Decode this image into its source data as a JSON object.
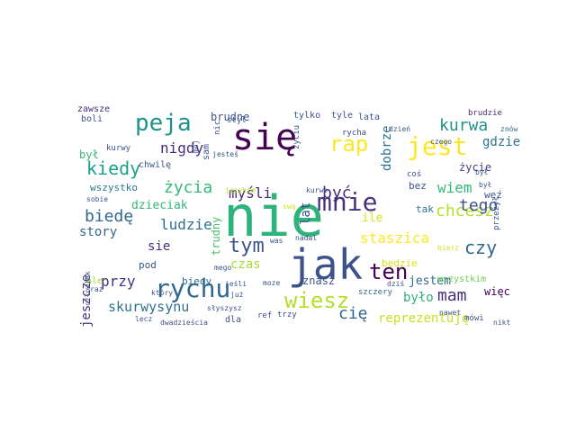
{
  "words": [
    {
      "text": "nie",
      "color": "#2eb37c"
    },
    {
      "text": "się",
      "color": "#440154"
    },
    {
      "text": "jak",
      "color": "#3b528b"
    },
    {
      "text": "peja",
      "color": "#21918c"
    },
    {
      "text": "rap",
      "color": "#fde725"
    },
    {
      "text": "jest",
      "color": "#fde725"
    },
    {
      "text": "mnie",
      "color": "#46327e"
    },
    {
      "text": "rychu",
      "color": "#31688e"
    },
    {
      "text": "wiesz",
      "color": "#b5de2b"
    },
    {
      "text": "ten",
      "color": "#440154"
    },
    {
      "text": "tym",
      "color": "#3b528b"
    },
    {
      "text": "kiedy",
      "color": "#1f9e89"
    },
    {
      "text": "kurwa",
      "color": "#21918c"
    },
    {
      "text": "staszica",
      "color": "#fde725"
    },
    {
      "text": "chcesz",
      "color": "#b5de2b"
    },
    {
      "text": "czy",
      "color": "#31688e"
    },
    {
      "text": "tego",
      "color": "#3b528b"
    },
    {
      "text": "mam",
      "color": "#472d7b"
    },
    {
      "text": "cię",
      "color": "#31688e"
    },
    {
      "text": "biedę",
      "color": "#31688e"
    },
    {
      "text": "życia",
      "color": "#35b779"
    },
    {
      "text": "nigdy",
      "color": "#472d7b"
    },
    {
      "text": "myśli",
      "color": "#482878"
    },
    {
      "text": "być",
      "color": "#472d7b"
    },
    {
      "text": "wiem",
      "color": "#35b779"
    },
    {
      "text": "ludzie",
      "color": "#2c728e"
    },
    {
      "text": "reprezentuję",
      "color": "#c8e020"
    },
    {
      "text": "przy",
      "color": "#46327e"
    },
    {
      "text": "skurwysynu",
      "color": "#2c728e"
    },
    {
      "text": "dobrze",
      "color": "#2c728e"
    },
    {
      "text": "gdzie",
      "color": "#2c728e"
    },
    {
      "text": "życie",
      "color": "#433e85"
    },
    {
      "text": "było",
      "color": "#2eb37c"
    },
    {
      "text": "jestem",
      "color": "#31688e"
    },
    {
      "text": "story",
      "color": "#31688e"
    },
    {
      "text": "sie",
      "color": "#472d7b"
    },
    {
      "text": "lat",
      "color": "#3b528b"
    },
    {
      "text": "czas",
      "color": "#a5db36"
    },
    {
      "text": "ile",
      "color": "#d8e219"
    },
    {
      "text": "dzieciak",
      "color": "#35b779"
    },
    {
      "text": "brudne",
      "color": "#3b528b"
    },
    {
      "text": "był",
      "color": "#35b779"
    },
    {
      "text": "trudny",
      "color": "#48c16e"
    },
    {
      "text": "wszystko",
      "color": "#2a788e"
    },
    {
      "text": "jeszcze",
      "color": "#472d7b"
    },
    {
      "text": "biedy",
      "color": "#2c728e"
    },
    {
      "text": "pod",
      "color": "#3b528b"
    },
    {
      "text": "znasz",
      "color": "#3b528b"
    },
    {
      "text": "będzie",
      "color": "#d8e219"
    },
    {
      "text": "więc",
      "color": "#440154"
    },
    {
      "text": "wszystkim",
      "color": "#6ece58"
    },
    {
      "text": "tak",
      "color": "#2c728e"
    },
    {
      "text": "bez",
      "color": "#3b528b"
    },
    {
      "text": "weź",
      "color": "#3b528b"
    },
    {
      "text": "tylko",
      "color": "#3b528b"
    },
    {
      "text": "tyle",
      "color": "#3b528b"
    },
    {
      "text": "lata",
      "color": "#3b528b"
    },
    {
      "text": "boli",
      "color": "#3b528b"
    },
    {
      "text": "zawsze",
      "color": "#472d7b"
    },
    {
      "text": "kurwy",
      "color": "#3b528b"
    },
    {
      "text": "chwilę",
      "color": "#3b528b"
    },
    {
      "text": "sam",
      "color": "#3b528b"
    },
    {
      "text": "styl",
      "color": "#3b528b"
    },
    {
      "text": "nic",
      "color": "#3b528b"
    },
    {
      "text": "mój",
      "color": "#3b528b"
    },
    {
      "text": "jesteś",
      "color": "#3b528b"
    },
    {
      "text": "życiu",
      "color": "#3b528b"
    },
    {
      "text": "rycha",
      "color": "#3b528b"
    },
    {
      "text": "coś",
      "color": "#3b528b"
    },
    {
      "text": "dzień",
      "color": "#3b528b"
    },
    {
      "text": "czego",
      "color": "#3b528b"
    },
    {
      "text": "brudzie",
      "color": "#472d7b"
    },
    {
      "text": "znów",
      "color": "#31688e"
    },
    {
      "text": "sobie",
      "color": "#3b528b"
    },
    {
      "text": "językim",
      "color": "#b5de2b"
    },
    {
      "text": "kurwo",
      "color": "#3b528b"
    },
    {
      "text": "swą",
      "color": "#d8e219"
    },
    {
      "text": "przeżył",
      "color": "#3b528b"
    },
    {
      "text": "nadal",
      "color": "#3b528b"
    },
    {
      "text": "bierz",
      "color": "#d8e219"
    },
    {
      "text": "dziś",
      "color": "#3b528b"
    },
    {
      "text": "szczery",
      "color": "#31688e"
    },
    {
      "text": "mówi",
      "color": "#3b528b"
    },
    {
      "text": "nawet",
      "color": "#3b528b"
    },
    {
      "text": "nikt",
      "color": "#3b528b"
    },
    {
      "text": "był",
      "color": "#3b528b"
    },
    {
      "text": "był",
      "color": "#3b528b"
    },
    {
      "text": "ale",
      "color": "#a5db36"
    },
    {
      "text": "raz",
      "color": "#3b528b"
    },
    {
      "text": "który",
      "color": "#3b528b"
    },
    {
      "text": "mego",
      "color": "#3b528b"
    },
    {
      "text": "was",
      "color": "#3b528b"
    },
    {
      "text": "jeśli",
      "color": "#3b528b"
    },
    {
      "text": "moze",
      "color": "#3b528b"
    },
    {
      "text": "już",
      "color": "#3b528b"
    },
    {
      "text": "człowiek",
      "color": "#3b528b"
    },
    {
      "text": "słyszysz",
      "color": "#3b528b"
    },
    {
      "text": "dla",
      "color": "#3b528b"
    },
    {
      "text": "ref",
      "color": "#3b528b"
    },
    {
      "text": "trzy",
      "color": "#3b528b"
    },
    {
      "text": "lecz",
      "color": "#3b528b"
    },
    {
      "text": "dwadzieścia",
      "color": "#3b528b"
    }
  ]
}
